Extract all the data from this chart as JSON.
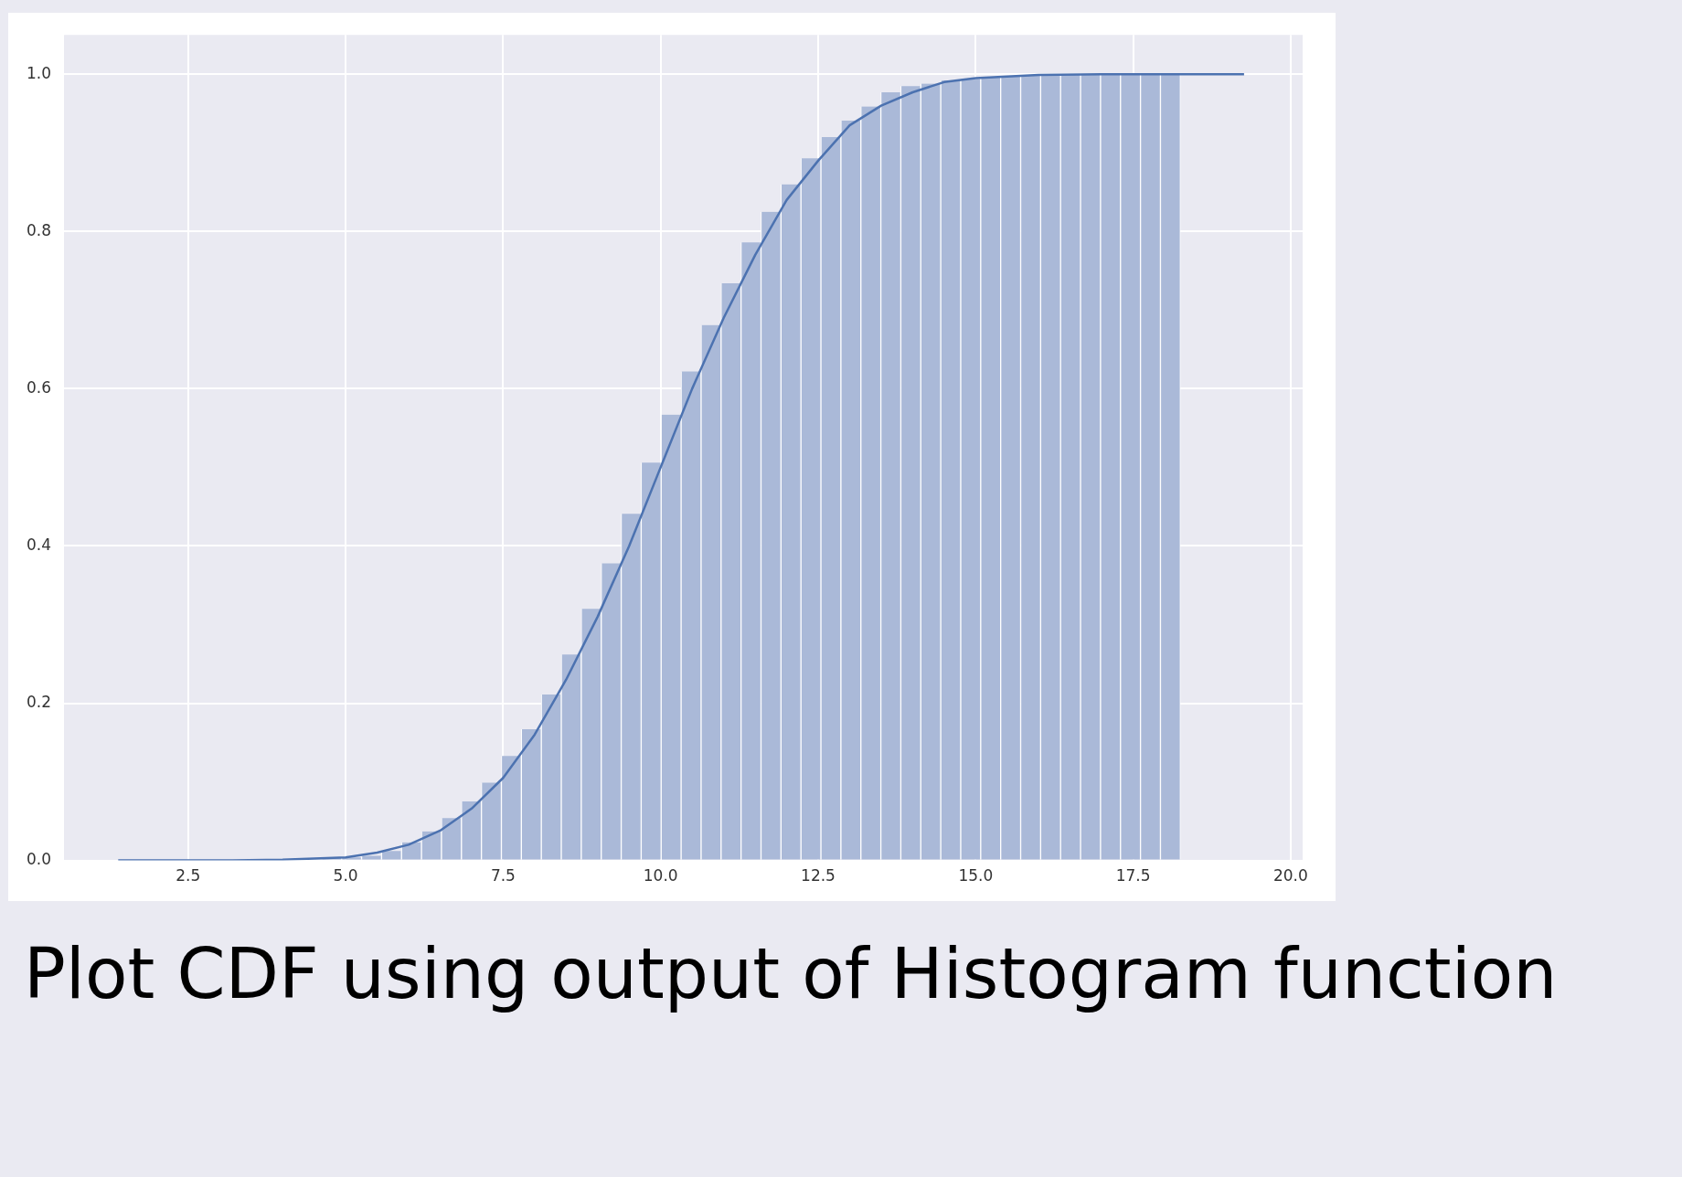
{
  "chart_data": {
    "type": "histogram",
    "series": [
      {
        "type": "histogram",
        "color": "#aab9d8",
        "bins": [
          2.4,
          2.717,
          3.034,
          3.351,
          3.668,
          3.985,
          4.302,
          4.619,
          4.936,
          5.253,
          5.57,
          5.887,
          6.204,
          6.521,
          6.838,
          7.155,
          7.472,
          7.789,
          8.106,
          8.423,
          8.74,
          9.057,
          9.374,
          9.691,
          10.008,
          10.325,
          10.642,
          10.959,
          11.276,
          11.593,
          11.91,
          12.227,
          12.544,
          12.861,
          13.178,
          13.495,
          13.812,
          14.129,
          14.446,
          14.763,
          15.08,
          15.397,
          15.714,
          16.031,
          16.348,
          16.665,
          16.982,
          17.299,
          17.616,
          17.933,
          18.25
        ],
        "values": [
          0,
          0,
          0,
          0,
          0.001,
          0.001,
          null,
          0.003,
          0.004,
          0.006,
          0.012,
          0.023,
          0.037,
          0.054,
          0.075,
          0.099,
          0.133,
          0.167,
          0.211,
          0.262,
          0.32,
          0.378,
          0.441,
          0.506,
          0.567,
          0.622,
          0.681,
          0.734,
          0.786,
          0.825,
          0.86,
          0.893,
          0.92,
          0.941,
          0.959,
          0.977,
          0.985,
          0.988,
          0.992,
          0.994,
          0.996,
          0.997,
          0.998,
          0.999,
          0.999,
          1,
          1,
          1,
          1,
          1
        ]
      },
      {
        "type": "line",
        "color": "#4c72b0",
        "x": [
          1.39,
          3,
          4,
          5,
          5.5,
          6,
          6.5,
          7,
          7.5,
          8,
          8.5,
          9,
          9.5,
          10,
          10.5,
          11,
          11.5,
          12,
          12.5,
          13,
          13.5,
          14,
          14.5,
          15,
          16,
          17,
          19.26
        ],
        "values": [
          0,
          0,
          0.001,
          0.004,
          0.01,
          0.02,
          0.038,
          0.066,
          0.105,
          0.16,
          0.23,
          0.31,
          0.4,
          0.5,
          0.6,
          0.69,
          0.77,
          0.84,
          0.89,
          0.935,
          0.96,
          0.977,
          0.99,
          0.995,
          0.999,
          1,
          1
        ]
      }
    ],
    "xlim": [
      0.53,
      20.19
    ],
    "ylim": [
      0,
      1.05
    ],
    "xticks": [
      {
        "value": 2.5,
        "label": "2.5"
      },
      {
        "value": 5,
        "label": "5.0"
      },
      {
        "value": 7.5,
        "label": "7.5"
      },
      {
        "value": 10,
        "label": "10.0"
      },
      {
        "value": 12.5,
        "label": "12.5"
      },
      {
        "value": 15,
        "label": "15.0"
      },
      {
        "value": 17.5,
        "label": "17.5"
      },
      {
        "value": 20,
        "label": "20.0"
      }
    ],
    "yticks": [
      {
        "value": 0,
        "label": "0.0"
      },
      {
        "value": 0.2,
        "label": "0.2"
      },
      {
        "value": 0.4,
        "label": "0.4"
      },
      {
        "value": 0.6,
        "label": "0.6"
      },
      {
        "value": 0.8,
        "label": "0.8"
      },
      {
        "value": 1,
        "label": "1.0"
      }
    ],
    "grid": true,
    "annotations": [
      "Plot CDF using output of Histogram function"
    ]
  }
}
